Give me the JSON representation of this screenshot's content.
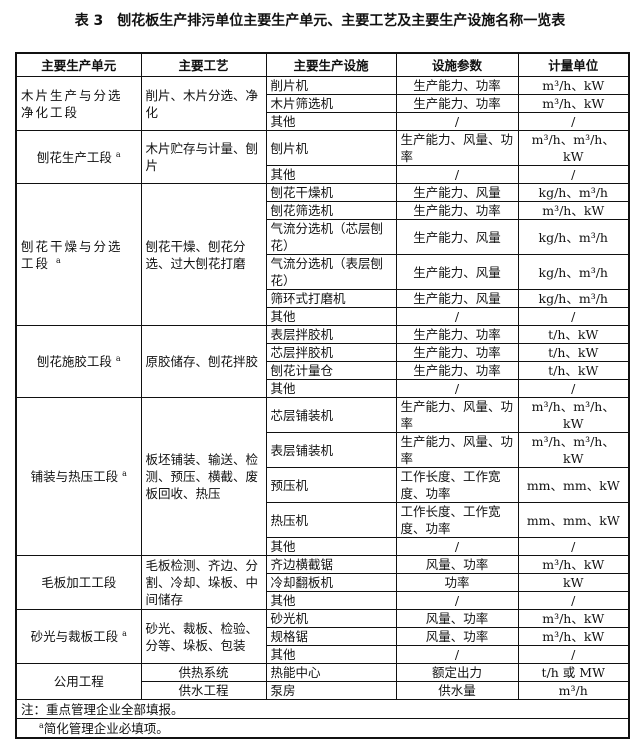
{
  "title": "表 3　刨花板生产排污单位主要生产单元、主要工艺及主要生产设施名称一览表",
  "headers": [
    "主要生产单元",
    "主要工艺",
    "主要生产设施",
    "设施参数",
    "计量单位"
  ],
  "groups": [
    {
      "unit": "木片生产与分选净化工段",
      "mark": "",
      "process": "削片、木片分选、净化",
      "facilities": [
        {
          "name": "削片机",
          "params": "生产能力、功率",
          "units": "m³/h、kW"
        },
        {
          "name": "木片筛选机",
          "params": "生产能力、功率",
          "units": "m³/h、kW"
        },
        {
          "name": "其他",
          "params": "/",
          "units": "/"
        }
      ]
    },
    {
      "unit": "刨花生产工段",
      "mark": "a",
      "process": "木片贮存与计量、刨片",
      "facilities": [
        {
          "name": "刨片机",
          "params": "生产能力、风量、功率",
          "units": "m³/h、m³/h、kW"
        },
        {
          "name": "其他",
          "params": "/",
          "units": "/"
        }
      ]
    },
    {
      "unit": "刨花干燥与分选工段",
      "mark": "a",
      "process": "刨花干燥、刨花分选、过大刨花打磨",
      "facilities": [
        {
          "name": "刨花干燥机",
          "params": "生产能力、风量",
          "units": "kg/h、m³/h"
        },
        {
          "name": "刨花筛选机",
          "params": "生产能力、功率",
          "units": "m³/h、kW"
        },
        {
          "name": "气流分选机（芯层刨花）",
          "params": "生产能力、风量",
          "units": "kg/h、m³/h"
        },
        {
          "name": "气流分选机（表层刨花）",
          "params": "生产能力、风量",
          "units": "kg/h、m³/h"
        },
        {
          "name": "筛环式打磨机",
          "params": "生产能力、风量",
          "units": "kg/h、m³/h"
        },
        {
          "name": "其他",
          "params": "/",
          "units": "/"
        }
      ]
    },
    {
      "unit": "刨花施胶工段",
      "mark": "a",
      "process": "原胶储存、刨花拌胶",
      "facilities": [
        {
          "name": "表层拌胶机",
          "params": "生产能力、功率",
          "units": "t/h、kW"
        },
        {
          "name": "芯层拌胶机",
          "params": "生产能力、功率",
          "units": "t/h、kW"
        },
        {
          "name": "刨花计量仓",
          "params": "生产能力、功率",
          "units": "t/h、kW"
        },
        {
          "name": "其他",
          "params": "/",
          "units": "/"
        }
      ]
    },
    {
      "unit": "铺装与热压工段",
      "mark": "a",
      "process": "板坯铺装、输送、检测、预压、横截、废板回收、热压",
      "facilities": [
        {
          "name": "芯层铺装机",
          "params": "生产能力、风量、功率",
          "units": "m³/h、m³/h、kW"
        },
        {
          "name": "表层铺装机",
          "params": "生产能力、风量、功率",
          "units": "m³/h、m³/h、kW"
        },
        {
          "name": "预压机",
          "params": "工作长度、工作宽度、功率",
          "units": "mm、mm、kW"
        },
        {
          "name": "热压机",
          "params": "工作长度、工作宽度、功率",
          "units": "mm、mm、kW"
        },
        {
          "name": "其他",
          "params": "/",
          "units": "/"
        }
      ]
    },
    {
      "unit": "毛板加工工段",
      "mark": "",
      "process": "毛板检测、齐边、分割、冷却、垛板、中间储存",
      "facilities": [
        {
          "name": "齐边横截锯",
          "params": "风量、功率",
          "units": "m³/h、kW"
        },
        {
          "name": "冷却翻板机",
          "params": "功率",
          "units": "kW"
        },
        {
          "name": "其他",
          "params": "/",
          "units": "/"
        }
      ]
    },
    {
      "unit": "砂光与裁板工段",
      "mark": "a",
      "process": "砂光、裁板、检验、分等、垛板、包装",
      "facilities": [
        {
          "name": "砂光机",
          "params": "风量、功率",
          "units": "m³/h、kW"
        },
        {
          "name": "规格锯",
          "params": "风量、功率",
          "units": "m³/h、kW"
        },
        {
          "name": "其他",
          "params": "/",
          "units": "/"
        }
      ]
    },
    {
      "unit": "公用工程",
      "mark": "",
      "process": "",
      "facilities": [
        {
          "process": "供热系统",
          "name": "热能中心",
          "params": "额定出力",
          "units": "t/h 或 MW"
        },
        {
          "process": "供水工程",
          "name": "泵房",
          "params": "供水量",
          "units": "m³/h"
        }
      ]
    }
  ],
  "notes": {
    "line1": "注：重点管理企业全部填报。",
    "mark": "a",
    "line2": "简化管理企业必填项。"
  }
}
